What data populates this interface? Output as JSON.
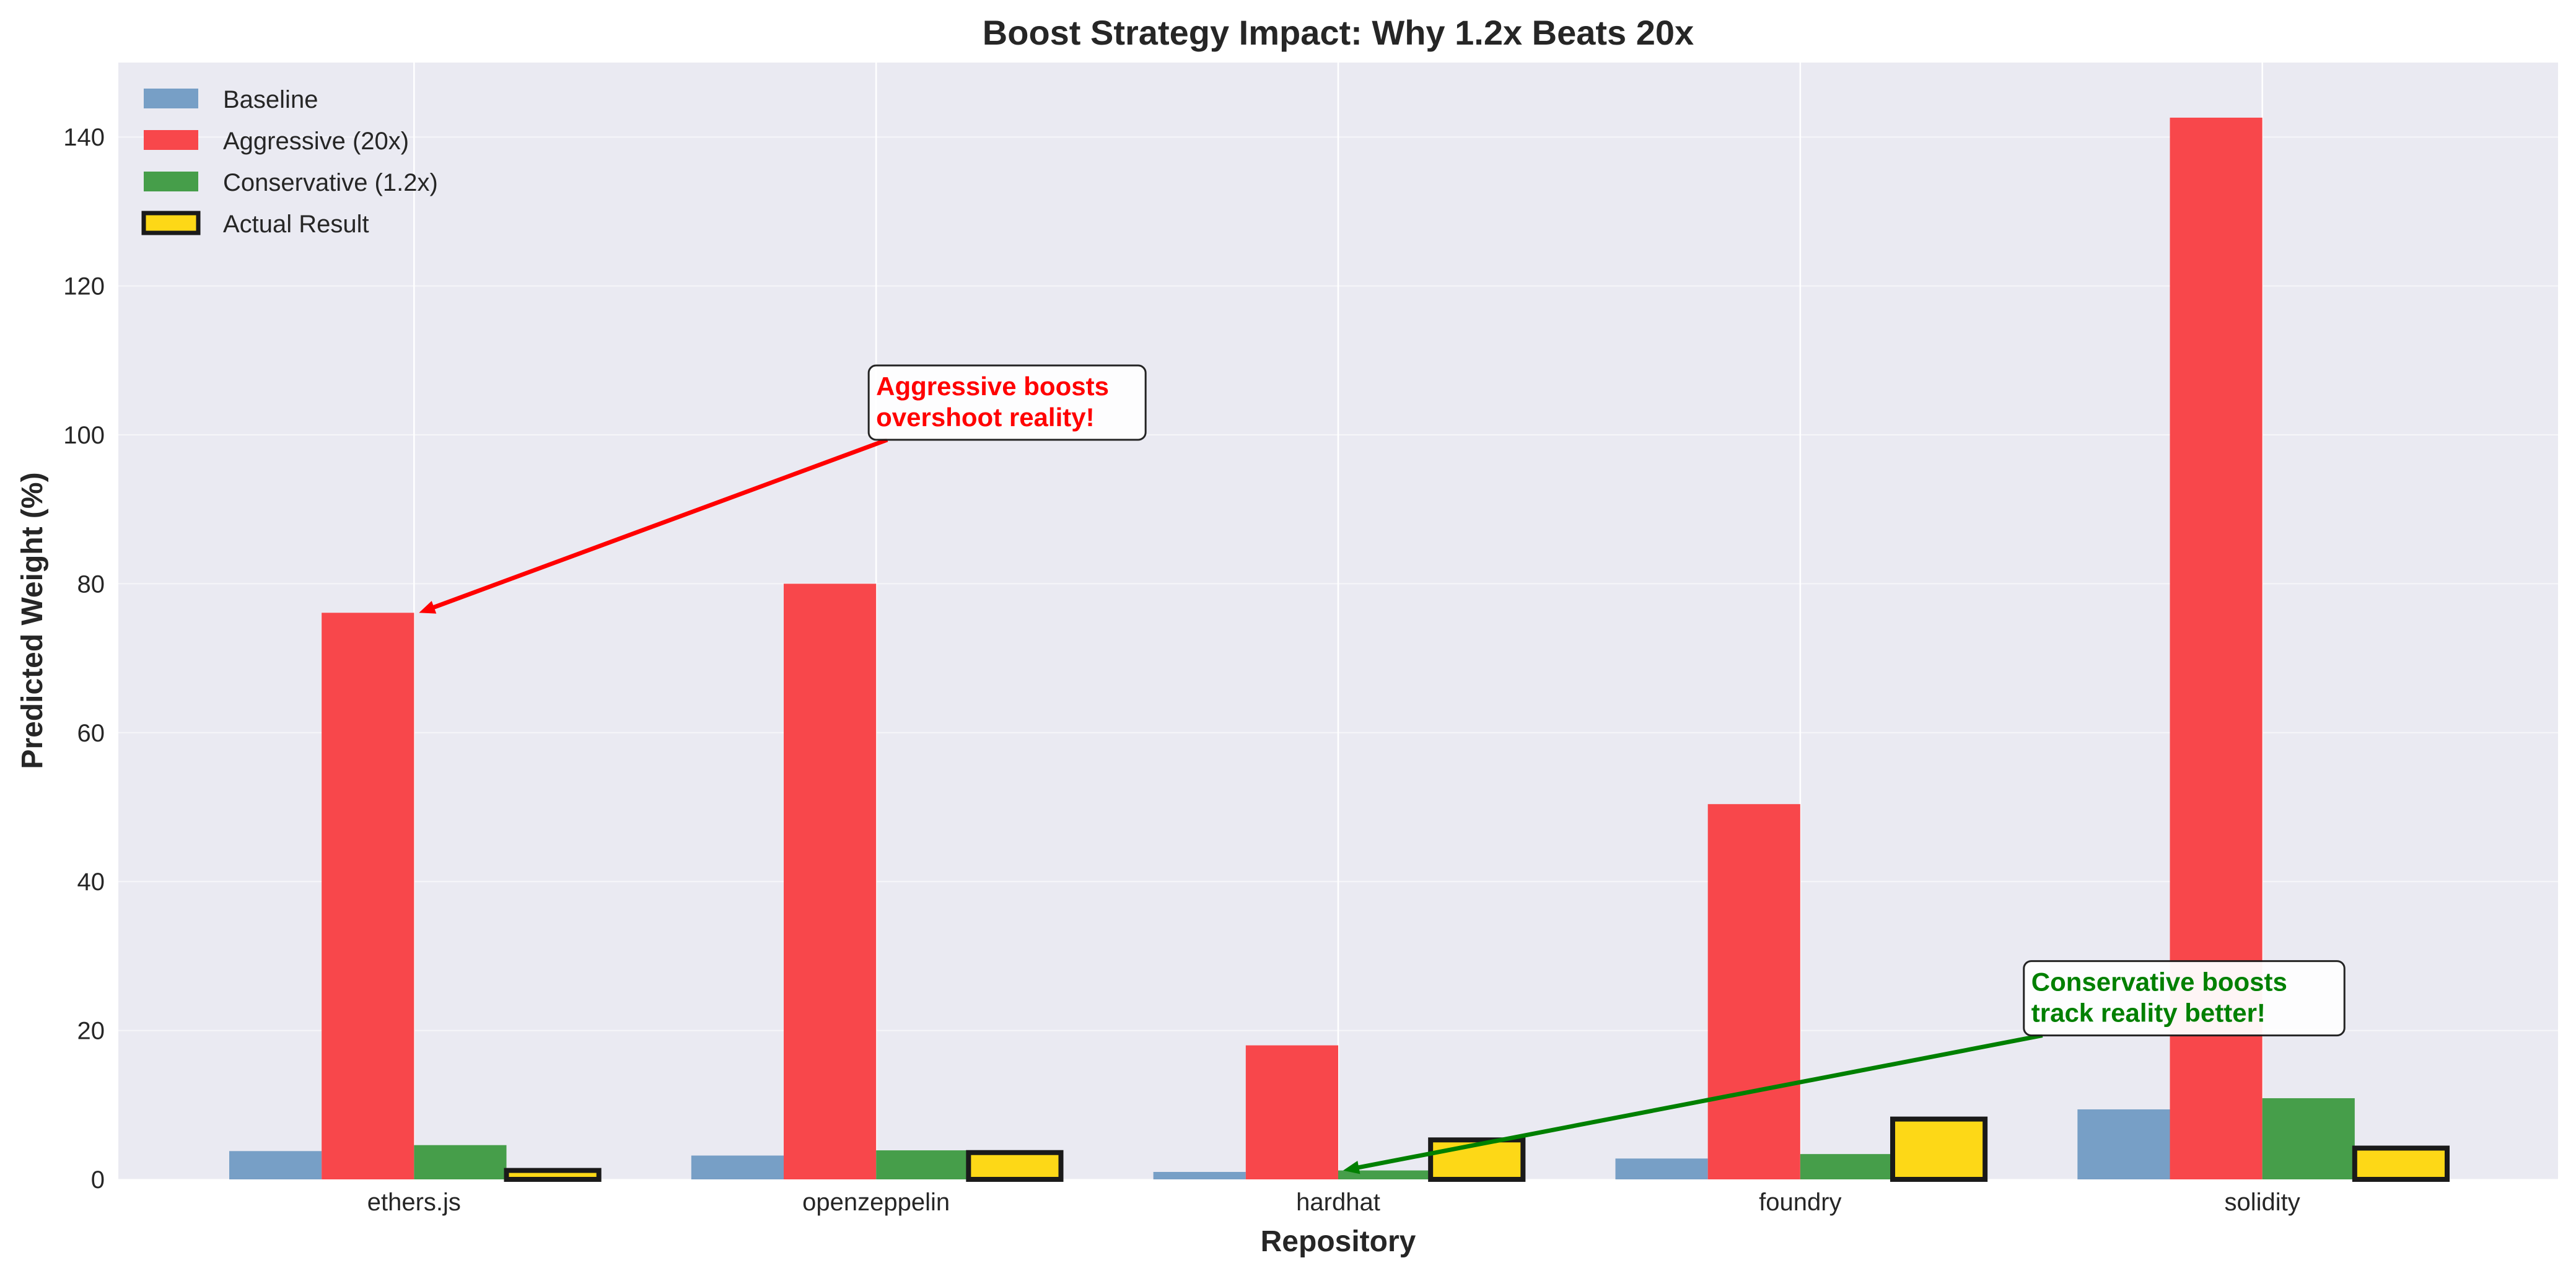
{
  "chart_data": {
    "type": "bar",
    "title": "Boost Strategy Impact: Why 1.2x Beats 20x",
    "xlabel": "Repository",
    "ylabel": "Predicted Weight (%)",
    "categories": [
      "ethers.js",
      "openzeppelin",
      "hardhat",
      "foundry",
      "solidity"
    ],
    "ylim": [
      0,
      150
    ],
    "yticks": [
      0,
      20,
      40,
      60,
      80,
      100,
      120,
      140
    ],
    "grid": true,
    "legend_position": "top-left",
    "series": [
      {
        "name": "Baseline",
        "color": "#779fc6",
        "values": [
          3.8,
          3.2,
          1.0,
          2.8,
          9.4
        ]
      },
      {
        "name": "Aggressive (20x)",
        "color": "#f8474b",
        "values": [
          76.1,
          80.0,
          18.0,
          50.4,
          142.6
        ]
      },
      {
        "name": "Conservative (1.2x)",
        "color": "#469e4a",
        "values": [
          4.6,
          3.9,
          1.2,
          3.4,
          10.9
        ]
      },
      {
        "name": "Actual Result",
        "color": "#fdd817",
        "edge": "#1a1a1a",
        "values": [
          1.2,
          3.6,
          5.3,
          8.1,
          4.2
        ]
      }
    ],
    "annotations": [
      {
        "lines": [
          "Aggressive boosts",
          "overshoot reality!"
        ],
        "color": "#ff0000",
        "text_at": [
          1.0,
          100
        ],
        "points_to": [
          0,
          76.1
        ]
      },
      {
        "lines": [
          "Conservative boosts",
          "track reality better!"
        ],
        "color": "#008000",
        "text_at": [
          3.5,
          20
        ],
        "points_to": [
          2,
          1.2
        ]
      }
    ]
  }
}
